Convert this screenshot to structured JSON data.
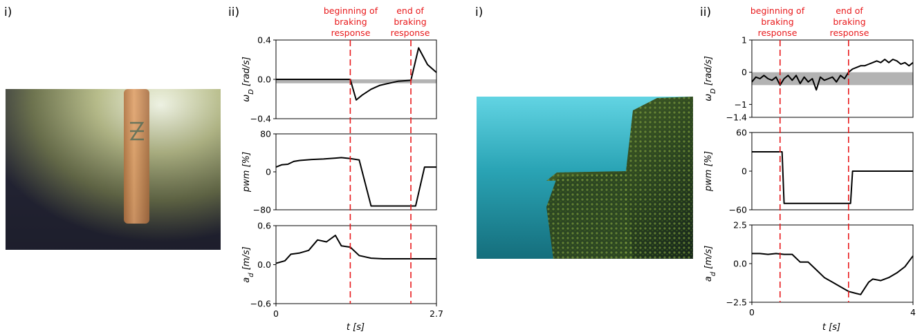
{
  "figure": {
    "left": {
      "photo_label": "i)",
      "plots_label": "ii)",
      "annotations": {
        "begin": [
          "beginning of",
          "braking",
          "response"
        ],
        "end": [
          "end of",
          "braking",
          "response"
        ]
      },
      "xlabel": "t [s]",
      "colors": {
        "line": "#000000",
        "event_line": "#e8191b",
        "band": "#b3b3b3"
      }
    },
    "right": {
      "photo_label": "i)",
      "plots_label": "ii)",
      "annotations": {
        "begin": [
          "beginning of",
          "braking",
          "response"
        ],
        "end": [
          "end of",
          "braking",
          "response"
        ]
      },
      "xlabel": "t [s]",
      "colors": {
        "line": "#000000",
        "event_line": "#e8191b",
        "band": "#b3b3b3"
      }
    }
  },
  "chart_data": [
    {
      "type": "line",
      "group": "left",
      "xlim": [
        0,
        2.7
      ],
      "xticks": [
        "0",
        "2.7"
      ],
      "events_x": [
        1.25,
        2.27
      ],
      "subplots": [
        {
          "ylabel": "ω_D [rad/s]",
          "ylim": [
            -0.4,
            0.4
          ],
          "yticks": [
            "0.4",
            "0.0",
            "−0.4"
          ],
          "band": [
            -0.04,
            0.0
          ],
          "x": [
            0,
            0.2,
            0.4,
            0.6,
            0.8,
            1.0,
            1.25,
            1.35,
            1.45,
            1.6,
            1.75,
            1.9,
            2.05,
            2.27,
            2.4,
            2.55,
            2.7
          ],
          "y": [
            0,
            0,
            0,
            0,
            0,
            0,
            0,
            -0.21,
            -0.16,
            -0.1,
            -0.06,
            -0.04,
            -0.02,
            -0.01,
            0.32,
            0.15,
            0.07
          ]
        },
        {
          "ylabel": "pwm [%]",
          "ylim": [
            -80,
            80
          ],
          "yticks": [
            "80",
            "0",
            "−80"
          ],
          "x": [
            0,
            0.1,
            0.2,
            0.3,
            0.4,
            0.6,
            0.8,
            0.9,
            1.0,
            1.1,
            1.25,
            1.4,
            1.6,
            1.8,
            2.0,
            2.2,
            2.35,
            2.5,
            2.6,
            2.7
          ],
          "y": [
            10,
            15,
            16,
            22,
            24,
            26,
            27,
            28,
            29,
            30,
            28,
            25,
            -72,
            -72,
            -72,
            -72,
            -72,
            10,
            10,
            10
          ]
        },
        {
          "ylabel": "a_d [m/s]",
          "ylim": [
            -0.6,
            0.6
          ],
          "yticks": [
            "0.6",
            "0.0",
            "−0.6"
          ],
          "x": [
            0,
            0.15,
            0.25,
            0.4,
            0.55,
            0.7,
            0.85,
            1.0,
            1.1,
            1.25,
            1.4,
            1.6,
            1.8,
            2.0,
            2.2,
            2.4,
            2.7
          ],
          "y": [
            0.02,
            0.06,
            0.16,
            0.18,
            0.22,
            0.38,
            0.35,
            0.45,
            0.29,
            0.27,
            0.14,
            0.1,
            0.09,
            0.09,
            0.09,
            0.09,
            0.09
          ]
        }
      ]
    },
    {
      "type": "line",
      "group": "right",
      "xlim": [
        0,
        4
      ],
      "xticks": [
        "0",
        "4"
      ],
      "events_x": [
        0.7,
        2.4
      ],
      "subplots": [
        {
          "ylabel": "ω_D [rad/s]",
          "ylim": [
            -1.4,
            1
          ],
          "yticks": [
            "1",
            "0",
            "−1",
            "−1.4"
          ],
          "band": [
            -0.4,
            0.0
          ],
          "x": [
            0,
            0.1,
            0.2,
            0.3,
            0.4,
            0.5,
            0.6,
            0.7,
            0.8,
            0.9,
            1.0,
            1.1,
            1.2,
            1.3,
            1.4,
            1.5,
            1.6,
            1.7,
            1.8,
            1.9,
            2.0,
            2.1,
            2.2,
            2.3,
            2.4,
            2.5,
            2.6,
            2.7,
            2.8,
            2.9,
            3.0,
            3.1,
            3.2,
            3.3,
            3.4,
            3.5,
            3.6,
            3.7,
            3.8,
            3.9,
            4.0
          ],
          "y": [
            -0.3,
            -0.15,
            -0.2,
            -0.1,
            -0.2,
            -0.25,
            -0.15,
            -0.4,
            -0.2,
            -0.1,
            -0.25,
            -0.1,
            -0.35,
            -0.15,
            -0.3,
            -0.2,
            -0.55,
            -0.15,
            -0.25,
            -0.2,
            -0.15,
            -0.3,
            -0.1,
            -0.2,
            0.0,
            0.1,
            0.15,
            0.2,
            0.2,
            0.25,
            0.3,
            0.35,
            0.3,
            0.4,
            0.3,
            0.4,
            0.35,
            0.25,
            0.3,
            0.2,
            0.3
          ]
        },
        {
          "ylabel": "pwm [%]",
          "ylim": [
            -60,
            60
          ],
          "yticks": [
            "60",
            "0",
            "−60"
          ],
          "x": [
            0,
            0.75,
            0.8,
            2.45,
            2.5,
            4.0
          ],
          "y": [
            30,
            30,
            -50,
            -50,
            0,
            0
          ]
        },
        {
          "ylabel": "a_d [m/s]",
          "ylim": [
            -2.5,
            2.5
          ],
          "yticks": [
            "2.5",
            "0.0",
            "−2.5"
          ],
          "x": [
            0,
            0.2,
            0.4,
            0.6,
            0.8,
            1.0,
            1.2,
            1.4,
            1.6,
            1.8,
            2.0,
            2.2,
            2.4,
            2.55,
            2.7,
            2.8,
            2.9,
            3.0,
            3.2,
            3.4,
            3.6,
            3.8,
            4.0
          ],
          "y": [
            0.65,
            0.65,
            0.6,
            0.65,
            0.6,
            0.6,
            0.1,
            0.1,
            -0.4,
            -0.9,
            -1.2,
            -1.5,
            -1.8,
            -1.9,
            -2.0,
            -1.6,
            -1.2,
            -1.0,
            -1.1,
            -0.9,
            -0.6,
            -0.2,
            0.5
          ]
        }
      ]
    }
  ]
}
